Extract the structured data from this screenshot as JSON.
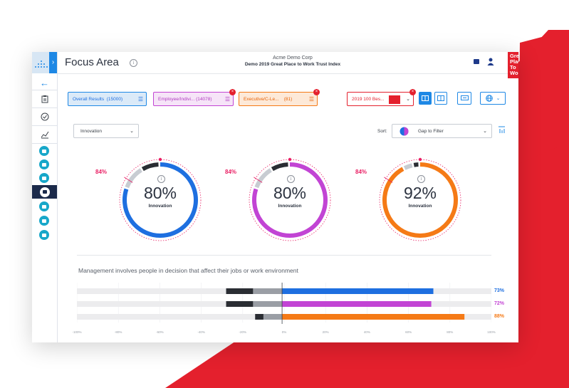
{
  "colors": {
    "accent": "#1e88e5",
    "brand_red": "#e4202d",
    "sidebar_dark": "#1b2a4a",
    "blue": "#1e6fe0",
    "purple": "#c244d4",
    "orange": "#f57a16",
    "benchmark": "#e91e63"
  },
  "header": {
    "page_title": "Focus Area",
    "org_name": "Acme Demo Corp",
    "survey_name": "Demo 2019 Great Place to Work Trust Index",
    "logo_lines": [
      "Great",
      "Place",
      "To",
      "Work."
    ]
  },
  "sidebar": {
    "icons": [
      "clipboard-icon",
      "check-circle-icon",
      "trend-chart-icon",
      "report-icon",
      "stack-icon",
      "list-icon",
      "people-icon",
      "document-icon",
      "certificate-icon",
      "user-badge-icon"
    ]
  },
  "filters": [
    {
      "label": "Overall Results",
      "count": "(15000)",
      "color": "#1e88e5",
      "bg": "#dbeaf8",
      "removable": false
    },
    {
      "label": "Employee/Indivi...",
      "count": "(14078)",
      "color": "#c244d4",
      "bg": "#f6e4f8",
      "removable": true
    },
    {
      "label": "Executive/C-Le...",
      "count": "(81)",
      "color": "#f57a16",
      "bg": "#fde9d8",
      "removable": true
    }
  ],
  "benchmark_select": {
    "label": "2019 100 Bes..."
  },
  "dimension_select": {
    "value": "Innovation"
  },
  "sort": {
    "label": "Sort:",
    "value": "Gap to Filter"
  },
  "gauges": [
    {
      "value": "80%",
      "label": "Innovation",
      "benchmark": "84%",
      "color": "#1e6fe0",
      "fraction": 0.8
    },
    {
      "value": "80%",
      "label": "Innovation",
      "benchmark": "84%",
      "color": "#c244d4",
      "fraction": 0.8
    },
    {
      "value": "92%",
      "label": "Innovation",
      "benchmark": "84%",
      "color": "#f57a16",
      "fraction": 0.92
    }
  ],
  "statement": {
    "text": "Management involves people in decision that affect their jobs or work environment",
    "axis_ticks": [
      "-100%",
      "-80%",
      "-60%",
      "-40%",
      "-20%",
      "0%",
      "20%",
      "40%",
      "60%",
      "80%",
      "100%"
    ],
    "rows": [
      {
        "label": "73%",
        "positive": 73,
        "neutral": 14,
        "negative": 13,
        "color": "#1e6fe0"
      },
      {
        "label": "72%",
        "positive": 72,
        "neutral": 14,
        "negative": 13,
        "color": "#c244d4"
      },
      {
        "label": "88%",
        "positive": 88,
        "neutral": 9,
        "negative": 4,
        "color": "#f57a16"
      }
    ]
  }
}
